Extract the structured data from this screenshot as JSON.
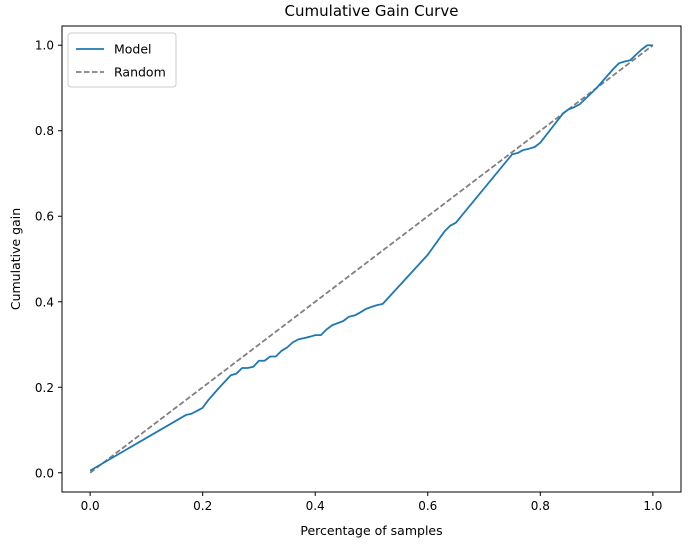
{
  "chart_data": {
    "type": "line",
    "title": "Cumulative Gain Curve",
    "xlabel": "Percentage of samples",
    "ylabel": "Cumulative gain",
    "xlim": [
      -0.05,
      1.05
    ],
    "ylim": [
      -0.045,
      1.045
    ],
    "xticks": [
      0.0,
      0.2,
      0.4,
      0.6,
      0.8,
      1.0
    ],
    "xtick_labels": [
      "0.0",
      "0.2",
      "0.4",
      "0.6",
      "0.8",
      "1.0"
    ],
    "yticks": [
      0.0,
      0.2,
      0.4,
      0.6,
      0.8,
      1.0
    ],
    "ytick_labels": [
      "0.0",
      "0.2",
      "0.4",
      "0.6",
      "0.8",
      "1.0"
    ],
    "grid": false,
    "legend_position": "top-left",
    "series": [
      {
        "name": "Model",
        "color": "#1f77b4",
        "style": "solid",
        "x": [
          0.0,
          0.17,
          0.18,
          0.19,
          0.2,
          0.21,
          0.23,
          0.25,
          0.26,
          0.27,
          0.28,
          0.29,
          0.3,
          0.31,
          0.32,
          0.33,
          0.34,
          0.35,
          0.36,
          0.37,
          0.38,
          0.39,
          0.4,
          0.41,
          0.42,
          0.43,
          0.44,
          0.45,
          0.46,
          0.47,
          0.48,
          0.49,
          0.5,
          0.51,
          0.52,
          0.6,
          0.63,
          0.64,
          0.65,
          0.75,
          0.76,
          0.77,
          0.78,
          0.79,
          0.8,
          0.84,
          0.85,
          0.86,
          0.87,
          0.9,
          0.93,
          0.94,
          0.95,
          0.96,
          0.97,
          0.98,
          0.99,
          1.0
        ],
        "y": [
          0.005,
          0.135,
          0.138,
          0.145,
          0.152,
          0.17,
          0.2,
          0.228,
          0.232,
          0.245,
          0.245,
          0.248,
          0.262,
          0.262,
          0.272,
          0.272,
          0.285,
          0.293,
          0.305,
          0.312,
          0.315,
          0.318,
          0.322,
          0.322,
          0.335,
          0.345,
          0.35,
          0.355,
          0.365,
          0.368,
          0.375,
          0.383,
          0.388,
          0.392,
          0.395,
          0.51,
          0.565,
          0.578,
          0.585,
          0.745,
          0.748,
          0.755,
          0.758,
          0.762,
          0.772,
          0.84,
          0.85,
          0.855,
          0.862,
          0.9,
          0.945,
          0.958,
          0.962,
          0.965,
          0.978,
          0.99,
          1.0,
          1.0
        ]
      },
      {
        "name": "Random",
        "color": "#808080",
        "style": "dashed",
        "x": [
          0.0,
          1.0
        ],
        "y": [
          0.0,
          1.0
        ]
      }
    ]
  }
}
